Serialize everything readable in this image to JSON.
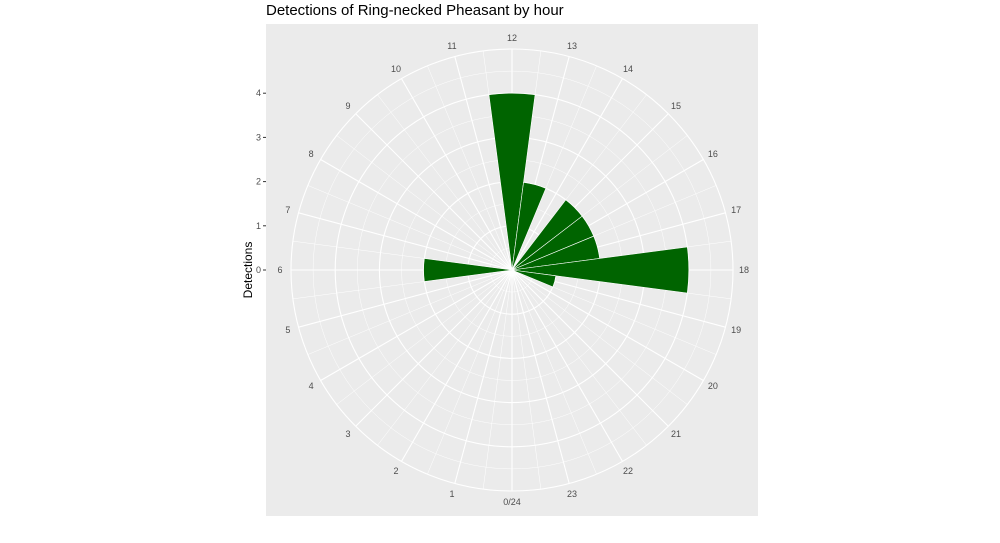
{
  "chart_data": {
    "type": "bar",
    "coordinate_system": "polar",
    "title": "Detections of Ring-necked Pheasant by hour",
    "ylabel": "Detections",
    "xlabel": "",
    "categories": [
      "0/24",
      "1",
      "2",
      "3",
      "4",
      "5",
      "6",
      "7",
      "8",
      "9",
      "10",
      "11",
      "12",
      "13",
      "14",
      "15",
      "16",
      "17",
      "18",
      "19",
      "20",
      "21",
      "22",
      "23"
    ],
    "x": [
      0,
      1,
      2,
      3,
      4,
      5,
      6,
      7,
      8,
      9,
      10,
      11,
      12,
      13,
      14,
      15,
      16,
      17,
      18,
      19,
      20,
      21,
      22,
      23
    ],
    "y": [
      0,
      0,
      0,
      0,
      0,
      0,
      2,
      0,
      0,
      0,
      0,
      0,
      4,
      2,
      0,
      2,
      2,
      2,
      4,
      1,
      0,
      0,
      0,
      0
    ],
    "ylim": [
      0,
      5
    ],
    "yticks": [
      0,
      1,
      2,
      3,
      4
    ],
    "bar_color": "#006400",
    "panel_background": "#ebebeb",
    "grid_color": "#ffffff",
    "grid": true,
    "legend": "none"
  }
}
